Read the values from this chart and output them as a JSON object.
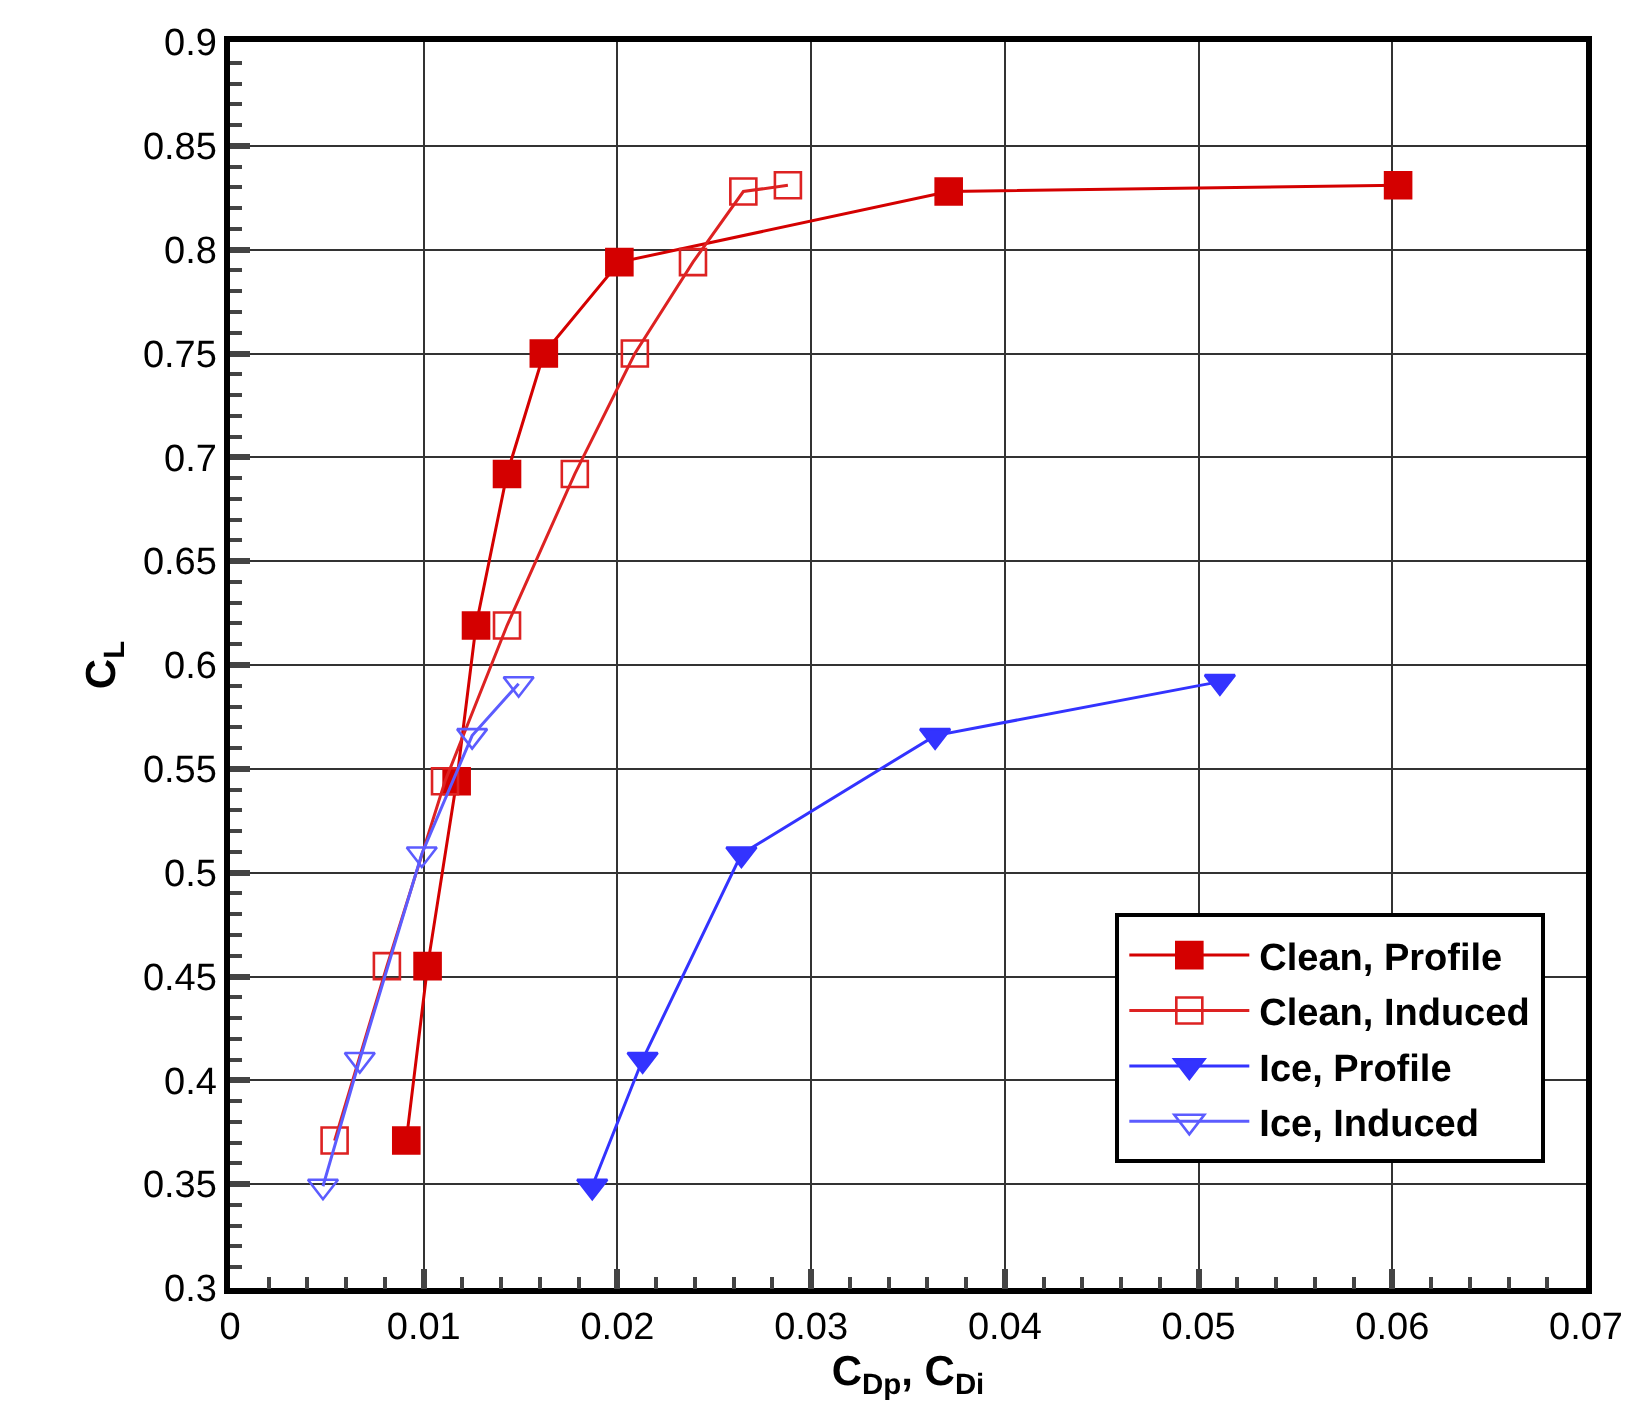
{
  "chart_data": {
    "type": "line",
    "xlabel": "C$_{Dp}$, C$_{Di}$",
    "ylabel": "C$_{L}$",
    "xlim": [
      0,
      0.07
    ],
    "xticks": [
      0,
      0.01,
      0.02,
      0.03,
      0.04,
      0.05,
      0.06,
      0.07
    ],
    "ylim": [
      0.3,
      0.9
    ],
    "yticks": [
      0.3,
      0.35,
      0.4,
      0.45,
      0.5,
      0.55,
      0.6,
      0.65,
      0.7,
      0.75,
      0.8,
      0.85,
      0.9
    ],
    "grid": true,
    "legend": "bottom right",
    "line_style": "solid",
    "series": [
      {
        "name": "Clean, Profile",
        "color": "#d40000",
        "marker": "square",
        "x": [
          0.0091,
          0.0102,
          0.0117,
          0.0127,
          0.0143,
          0.0162,
          0.0201,
          0.0371,
          0.0603
        ],
        "values": [
          0.371,
          0.455,
          0.544,
          0.619,
          0.692,
          0.75,
          0.794,
          0.828,
          0.831
        ]
      },
      {
        "name": "Clean, Induced",
        "color": "#dd2222",
        "marker": "square-open",
        "x": [
          0.0054,
          0.0081,
          0.0111,
          0.0143,
          0.0178,
          0.0209,
          0.0239,
          0.0265,
          0.0288
        ],
        "values": [
          0.371,
          0.455,
          0.544,
          0.619,
          0.692,
          0.75,
          0.794,
          0.828,
          0.831
        ]
      },
      {
        "name": "Ice, Profile",
        "color": "#3333ff",
        "marker": "triangle-down",
        "x": [
          0.0187,
          0.0213,
          0.0264,
          0.0364,
          0.0511
        ],
        "values": [
          0.349,
          0.41,
          0.509,
          0.566,
          0.592
        ]
      },
      {
        "name": "Ice, Induced",
        "color": "#5c5cff",
        "marker": "triangle-down-open",
        "x": [
          0.0048,
          0.0067,
          0.0099,
          0.0125,
          0.0149
        ],
        "values": [
          0.349,
          0.41,
          0.509,
          0.566,
          0.591
        ]
      }
    ]
  }
}
